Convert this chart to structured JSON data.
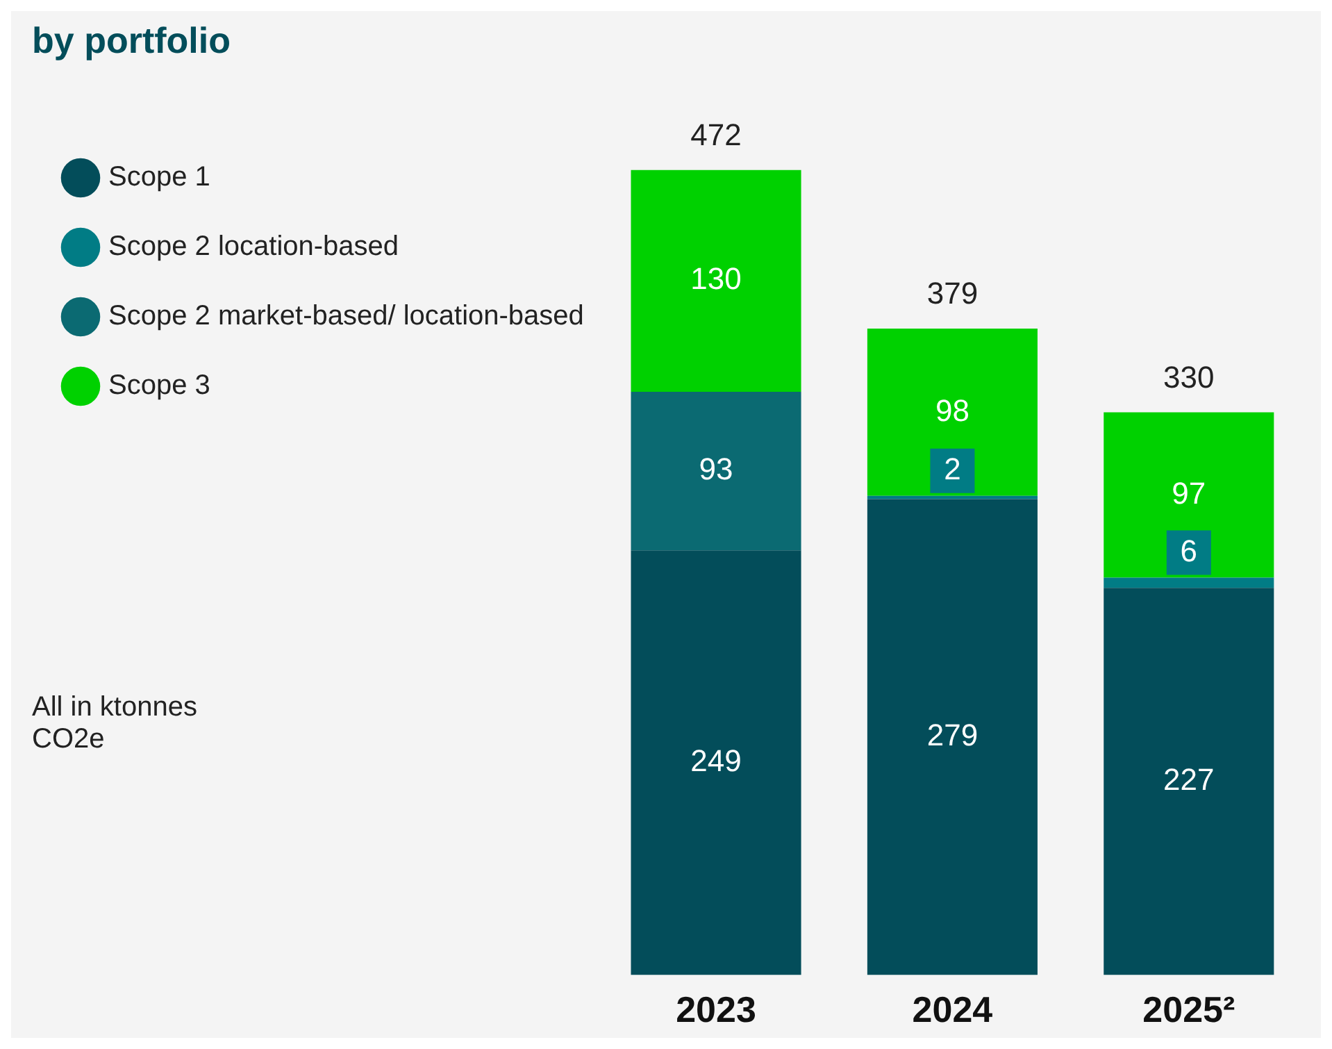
{
  "chart_data": {
    "type": "bar",
    "title": "by portfolio",
    "stacked": true,
    "categories": [
      "2023",
      "2024",
      "2025²"
    ],
    "series": [
      {
        "name": "Scope 1",
        "color": "#034d5a",
        "values": [
          249,
          279,
          227
        ]
      },
      {
        "name": "Scope 2 location-based",
        "color": "#017c85",
        "values": [
          null,
          2,
          6
        ]
      },
      {
        "name": "Scope 2 market-based/ location-based",
        "color": "#0b6a72",
        "values": [
          93,
          null,
          null
        ]
      },
      {
        "name": "Scope 3",
        "color": "#00d100",
        "values": [
          130,
          98,
          97
        ]
      }
    ],
    "totals": [
      "472",
      "379",
      "330"
    ],
    "data_labels": true,
    "legend": "left",
    "annotations": [
      "All in ktonnes CO2e"
    ]
  }
}
